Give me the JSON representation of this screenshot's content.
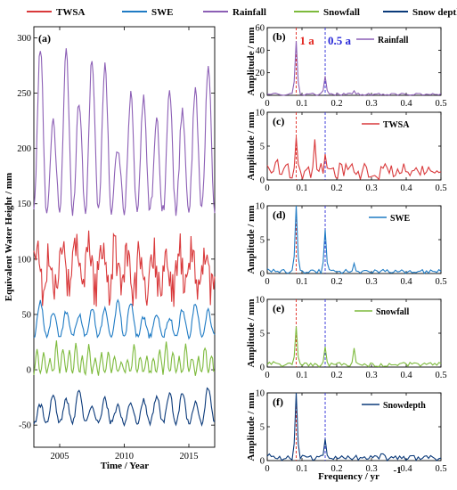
{
  "colors": {
    "TWSA": "#d9393b",
    "SWE": "#1f7bc4",
    "Rainfall": "#8c5fb5",
    "Snowfall": "#7dba3c",
    "Snow depth": "#0b3a7a",
    "one_year_line": "#e2261f",
    "half_year_line": "#2a2ad8"
  },
  "legend": [
    "TWSA",
    "SWE",
    "Rainfall",
    "Snowfall",
    "Snow depth"
  ],
  "chart_data": [
    {
      "id": "a",
      "type": "line",
      "panel_label": "(a)",
      "xlabel": "Time / Year",
      "ylabel": "Equivalent Water Height / mm",
      "xlim": [
        2003,
        2017
      ],
      "ylim": [
        -70,
        310
      ],
      "xticks": [
        2005,
        2010,
        2015
      ],
      "yticks": [
        -50,
        0,
        50,
        100,
        150,
        200,
        250,
        300
      ],
      "grid": false,
      "series_shape": [
        {
          "name": "Rainfall",
          "baseline": 145,
          "peak_range": [
            195,
            305
          ],
          "cycles_per_year": 1
        },
        {
          "name": "TWSA",
          "baseline": 90,
          "range": [
            52,
            130
          ],
          "cycles_per_year": 1
        },
        {
          "name": "SWE",
          "baseline": 30,
          "peak_range": [
            45,
            62
          ],
          "cycles_per_year": 1
        },
        {
          "name": "Snowfall",
          "baseline": -3,
          "peak_range": [
            8,
            25
          ],
          "cycles_per_year": 2
        },
        {
          "name": "Snow depth",
          "baseline": -48,
          "peak_range": [
            -35,
            -15
          ],
          "cycles_per_year": 1
        }
      ]
    },
    {
      "id": "b",
      "type": "line",
      "panel_label": "(b)",
      "series": "Rainfall",
      "ylabel": "Amplitude / mm",
      "xlim": [
        0,
        0.5
      ],
      "ylim": [
        0,
        60
      ],
      "yticks": [
        0,
        20,
        40,
        60
      ],
      "xticks": [
        0,
        0.1,
        0.2,
        0.3,
        0.4,
        0.5
      ],
      "annotations": [
        "1 a",
        "0.5 a"
      ],
      "one_year_freq": 0.0833,
      "half_year_freq": 0.1667,
      "peaks": [
        {
          "x": 0.0833,
          "y": 48
        },
        {
          "x": 0.1667,
          "y": 17
        },
        {
          "x": 0.25,
          "y": 4
        }
      ],
      "noise_level": 2
    },
    {
      "id": "c",
      "type": "line",
      "panel_label": "(c)",
      "series": "TWSA",
      "ylabel": "Amplitude / mm",
      "xlim": [
        0,
        0.5
      ],
      "ylim": [
        0,
        10
      ],
      "yticks": [
        0,
        5,
        10
      ],
      "xticks": [
        0,
        0.1,
        0.2,
        0.3,
        0.4,
        0.5
      ],
      "peaks": [
        {
          "x": 0.0833,
          "y": 6.3
        },
        {
          "x": 0.135,
          "y": 6
        },
        {
          "x": 0.1667,
          "y": 3.8
        }
      ],
      "noise_level": 2.5
    },
    {
      "id": "d",
      "type": "line",
      "panel_label": "(d)",
      "series": "SWE",
      "ylabel": "Amplitude / mm",
      "xlim": [
        0,
        0.5
      ],
      "ylim": [
        0,
        10
      ],
      "yticks": [
        0,
        5,
        10
      ],
      "xticks": [
        0,
        0.1,
        0.2,
        0.3,
        0.4,
        0.5
      ],
      "peaks": [
        {
          "x": 0.0833,
          "y": 10
        },
        {
          "x": 0.1667,
          "y": 6.5
        },
        {
          "x": 0.25,
          "y": 1.5
        }
      ],
      "noise_level": 0.6
    },
    {
      "id": "e",
      "type": "line",
      "panel_label": "(e)",
      "series": "Snowfall",
      "ylabel": "Amplitude / mm",
      "xlim": [
        0,
        0.5
      ],
      "ylim": [
        0,
        10
      ],
      "yticks": [
        0,
        5,
        10
      ],
      "xticks": [
        0,
        0.1,
        0.2,
        0.3,
        0.4,
        0.5
      ],
      "peaks": [
        {
          "x": 0.0833,
          "y": 6
        },
        {
          "x": 0.1667,
          "y": 3
        },
        {
          "x": 0.25,
          "y": 2.8
        }
      ],
      "noise_level": 0.7
    },
    {
      "id": "f",
      "type": "line",
      "panel_label": "(f)",
      "series": "Snowdepth",
      "ylabel": "Amplitude / mm",
      "xlabel": "Frequency / yr",
      "xlabel_sup": "-1",
      "xlim": [
        0,
        0.5
      ],
      "ylim": [
        0,
        10
      ],
      "yticks": [
        0,
        5,
        10
      ],
      "xticks": [
        0,
        0.1,
        0.2,
        0.3,
        0.4,
        0.5
      ],
      "peaks": [
        {
          "x": 0.0833,
          "y": 10
        },
        {
          "x": 0.1667,
          "y": 3.2
        },
        {
          "x": 0.33,
          "y": 1
        }
      ],
      "noise_level": 0.8
    }
  ]
}
